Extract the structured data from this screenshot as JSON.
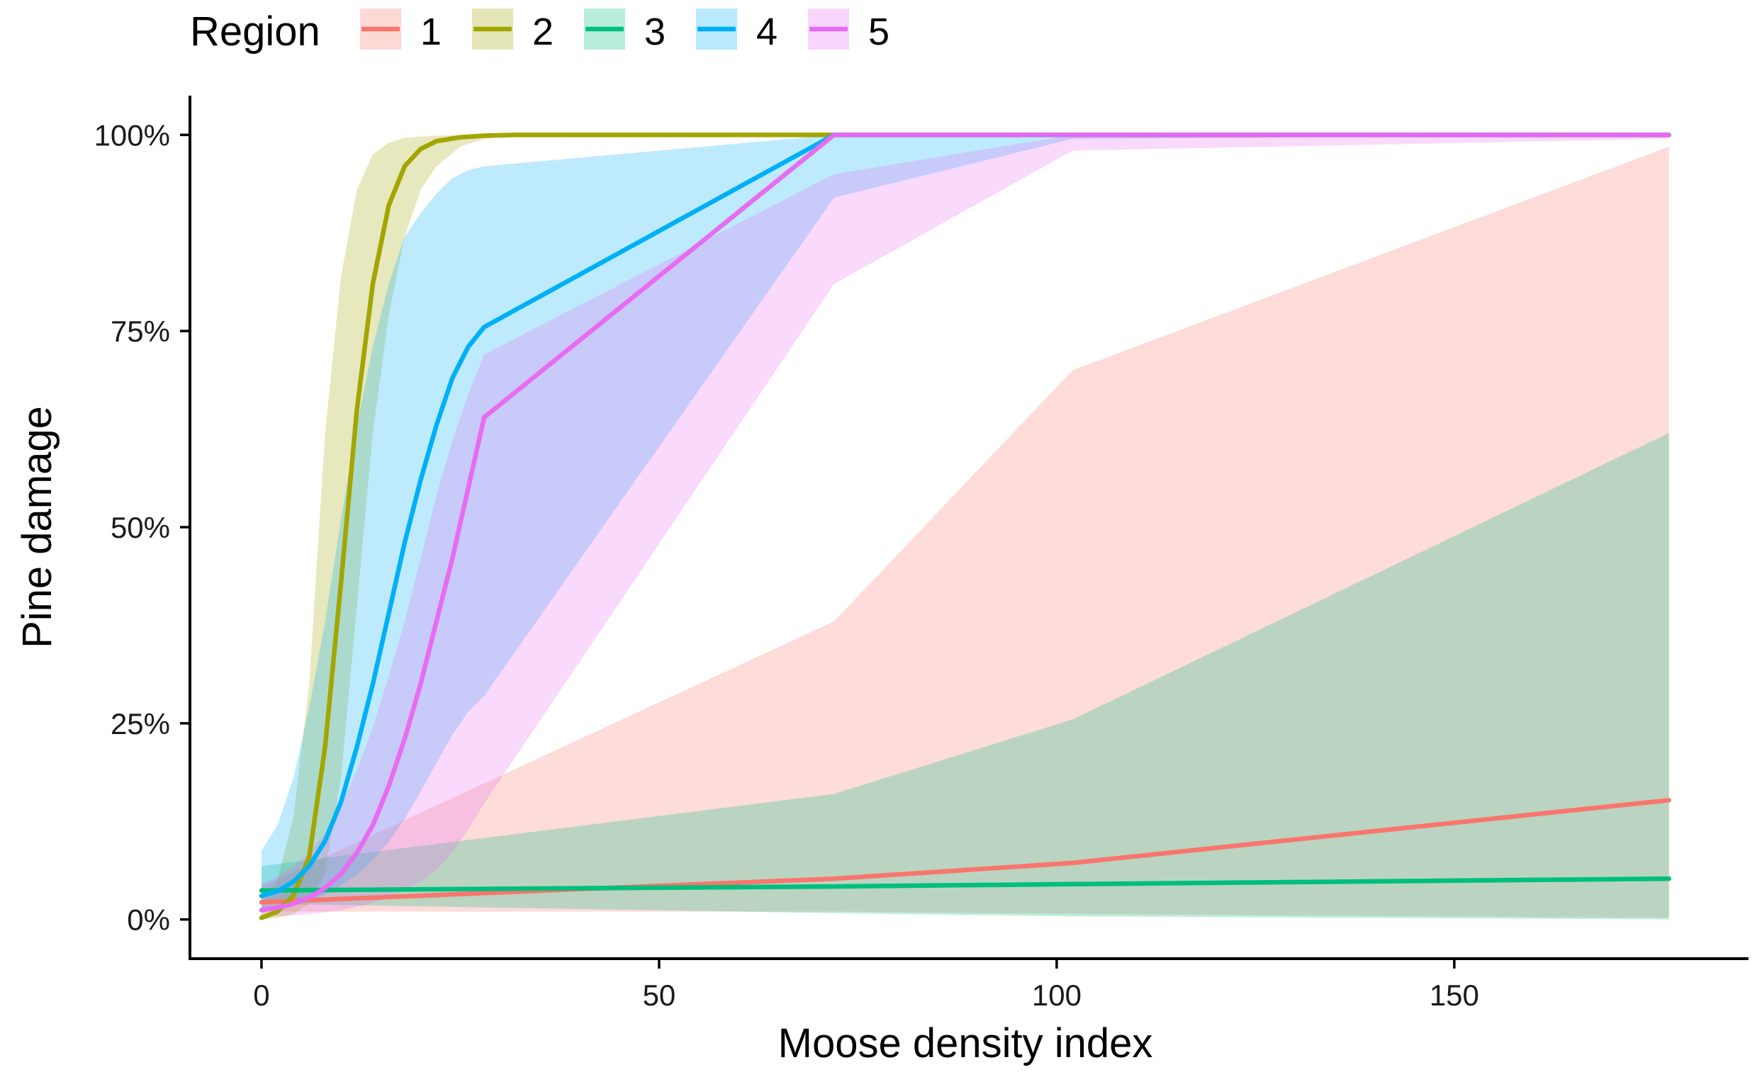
{
  "chart_data": {
    "type": "line",
    "title": "",
    "xlabel": "Moose density index",
    "ylabel": "Pine damage",
    "xlim": [
      -9,
      187
    ],
    "ylim": [
      -0.05,
      1.05
    ],
    "x_ticks": [
      0,
      50,
      100,
      150
    ],
    "x_tick_labels": [
      "0",
      "50",
      "100",
      "150"
    ],
    "y_ticks": [
      0,
      0.25,
      0.5,
      0.75,
      1.0
    ],
    "y_tick_labels": [
      "0%",
      "25%",
      "50%",
      "75%",
      "100%"
    ],
    "legend": {
      "title": "Region",
      "position": "top-left"
    },
    "grid": false,
    "series": [
      {
        "name": "1",
        "color": "#F8766D",
        "x": [
          0,
          72,
          102,
          177
        ],
        "y": [
          0.022,
          0.052,
          0.072,
          0.152
        ],
        "lower": [
          0.01,
          0.01,
          0.007,
          0.002
        ],
        "upper": [
          0.042,
          0.38,
          0.7,
          0.985
        ]
      },
      {
        "name": "2",
        "color": "#A3A500",
        "x": [
          0,
          2,
          4,
          6,
          8,
          10,
          12,
          14,
          16,
          18,
          20,
          22,
          25,
          28,
          32,
          40,
          50,
          72,
          102,
          177
        ],
        "y": [
          0.002,
          0.01,
          0.03,
          0.08,
          0.22,
          0.43,
          0.65,
          0.81,
          0.91,
          0.96,
          0.982,
          0.992,
          0.997,
          0.999,
          1,
          1,
          1,
          1,
          1,
          1
        ],
        "lower": [
          0.0,
          0.002,
          0.007,
          0.02,
          0.06,
          0.18,
          0.4,
          0.62,
          0.77,
          0.87,
          0.93,
          0.96,
          0.985,
          0.995,
          0.999,
          1,
          1,
          1,
          1,
          1
        ],
        "upper": [
          0.02,
          0.05,
          0.13,
          0.3,
          0.62,
          0.82,
          0.93,
          0.975,
          0.99,
          0.996,
          0.998,
          0.999,
          1,
          1,
          1,
          1,
          1,
          1,
          1,
          1
        ]
      },
      {
        "name": "3",
        "color": "#00BF7D",
        "x": [
          0,
          72,
          102,
          177
        ],
        "y": [
          0.037,
          0.042,
          0.045,
          0.052
        ],
        "lower": [
          0.02,
          0.008,
          0.004,
          0.0
        ],
        "upper": [
          0.068,
          0.16,
          0.255,
          0.62
        ]
      },
      {
        "name": "4",
        "color": "#00B0F6",
        "x": [
          0,
          2,
          4,
          6,
          8,
          10,
          12,
          14,
          16,
          18,
          20,
          22,
          24,
          26,
          28,
          72,
          102,
          177
        ],
        "y": [
          0.03,
          0.036,
          0.048,
          0.068,
          0.1,
          0.15,
          0.22,
          0.3,
          0.39,
          0.48,
          0.56,
          0.63,
          0.69,
          0.73,
          0.755,
          1,
          1,
          1
        ],
        "lower": [
          0.01,
          0.013,
          0.018,
          0.024,
          0.032,
          0.043,
          0.057,
          0.076,
          0.099,
          0.128,
          0.163,
          0.2,
          0.235,
          0.265,
          0.285,
          0.92,
          0.995,
          1
        ],
        "upper": [
          0.088,
          0.12,
          0.18,
          0.27,
          0.38,
          0.51,
          0.63,
          0.73,
          0.81,
          0.87,
          0.9,
          0.925,
          0.945,
          0.955,
          0.96,
          1,
          1,
          1
        ]
      },
      {
        "name": "5",
        "color": "#E76BF3",
        "x": [
          0,
          2,
          4,
          6,
          8,
          10,
          12,
          14,
          16,
          18,
          20,
          22,
          24,
          26,
          28,
          72,
          102,
          177
        ],
        "y": [
          0.012,
          0.015,
          0.02,
          0.028,
          0.04,
          0.058,
          0.085,
          0.12,
          0.17,
          0.23,
          0.3,
          0.38,
          0.46,
          0.55,
          0.64,
          1,
          1,
          1
        ],
        "lower": [
          0.003,
          0.004,
          0.005,
          0.007,
          0.009,
          0.012,
          0.016,
          0.021,
          0.028,
          0.037,
          0.048,
          0.063,
          0.085,
          0.115,
          0.148,
          0.81,
          0.98,
          0.995
        ],
        "upper": [
          0.045,
          0.055,
          0.068,
          0.085,
          0.11,
          0.145,
          0.19,
          0.245,
          0.31,
          0.38,
          0.46,
          0.54,
          0.61,
          0.67,
          0.72,
          0.95,
          1,
          1
        ]
      }
    ]
  }
}
